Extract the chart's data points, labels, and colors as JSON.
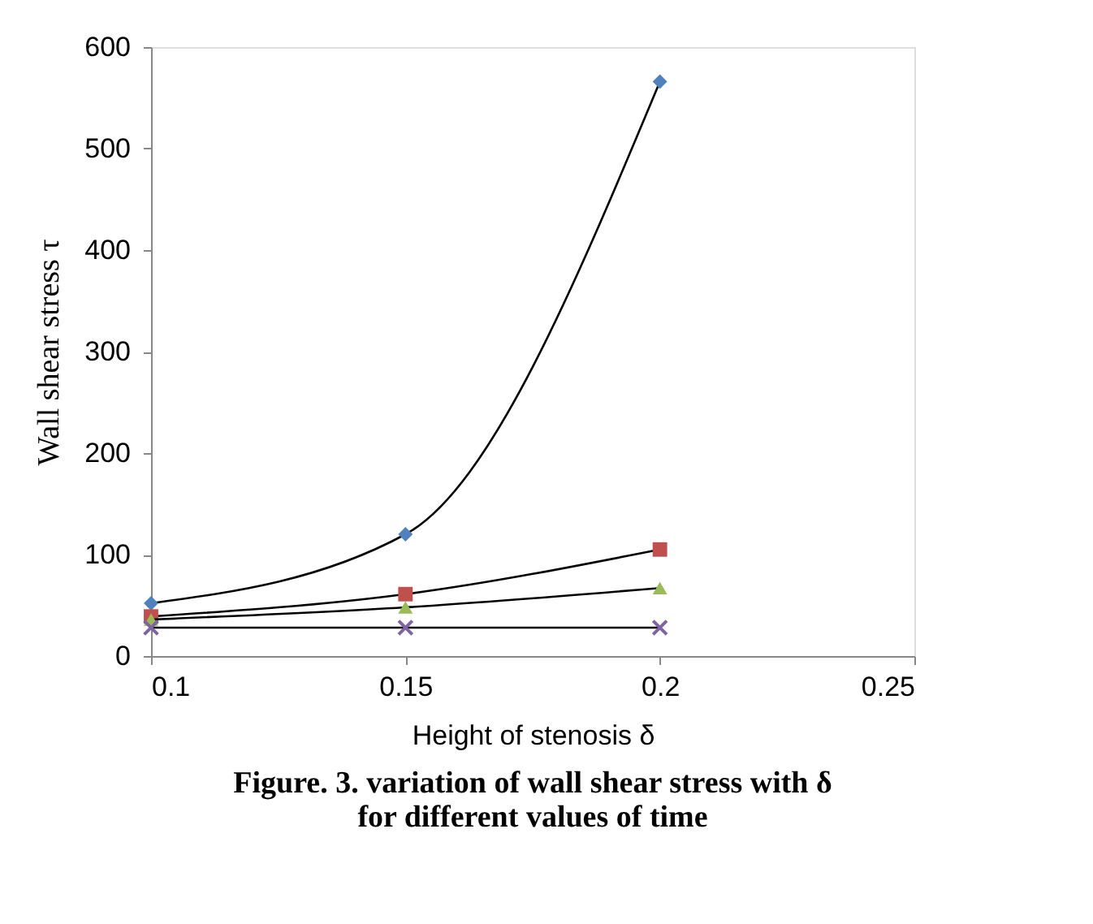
{
  "chart_data": {
    "type": "line",
    "xlabel": "Height of stenosis δ",
    "ylabel": "Wall shear stress  τ",
    "x": [
      0.1,
      0.15,
      0.2
    ],
    "series": [
      {
        "color": "#4f81bd",
        "marker": "diamond",
        "values": [
          52,
          120,
          566
        ]
      },
      {
        "color": "#c0504d",
        "marker": "square",
        "values": [
          39,
          61,
          105
        ]
      },
      {
        "color": "#9bbb59",
        "marker": "triangle",
        "values": [
          36,
          48,
          67
        ]
      },
      {
        "color": "#8064a2",
        "marker": "cross",
        "values": [
          28,
          28,
          28
        ]
      }
    ],
    "xlim": [
      0.1,
      0.25
    ],
    "xticks": [
      0.1,
      0.15,
      0.2,
      0.25
    ],
    "ylim": [
      0,
      600
    ],
    "yticks": [
      0,
      100,
      200,
      300,
      400,
      500,
      600
    ],
    "grid": false,
    "line_style": "solid",
    "annotations": [
      "Figure. 3. variation of wall shear stress with δ",
      "for different values of time"
    ]
  }
}
